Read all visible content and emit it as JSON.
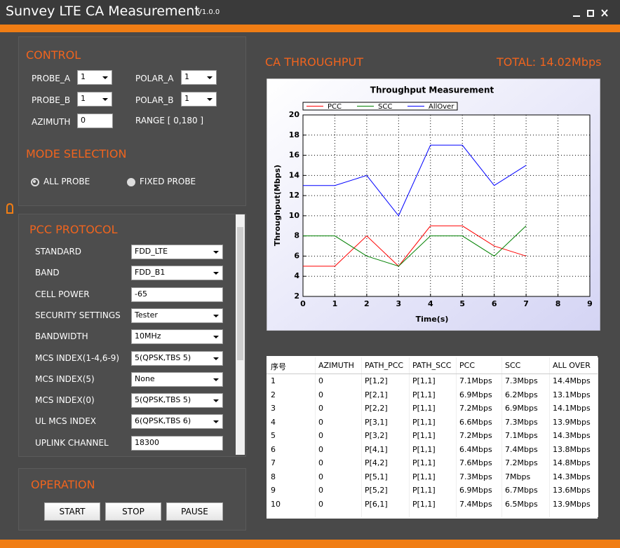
{
  "header": {
    "title": "Sunvey LTE CA Measurement",
    "version": "V1.0.0"
  },
  "control": {
    "title": "CONTROL",
    "fields": [
      {
        "label": "PROBE_A",
        "value": "1"
      },
      {
        "label": "POLAR_A",
        "value": "1"
      },
      {
        "label": "PROBE_B",
        "value": "1"
      },
      {
        "label": "POLAR_B",
        "value": "1"
      },
      {
        "label": "AZIMUTH",
        "value": "0"
      }
    ],
    "range": "RANGE  [ 0,180 ]"
  },
  "mode": {
    "title": "MODE SELECTION",
    "options": [
      "ALL PROBE",
      "FIXED PROBE"
    ]
  },
  "pcc": {
    "title": "PCC PROTOCOL",
    "rows": [
      [
        "STANDARD",
        "FDD_LTE"
      ],
      [
        "BAND",
        "FDD_B1"
      ],
      [
        "CELL POWER",
        "-65"
      ],
      [
        "SECURITY SETTINGS",
        "Tester"
      ],
      [
        "BANDWIDTH",
        "10MHz"
      ],
      [
        "MCS INDEX(1-4,6-9)",
        "5(QPSK,TBS 5)"
      ],
      [
        "MCS INDEX(5)",
        "None"
      ],
      [
        "MCS INDEX(0)",
        "5(QPSK,TBS 5)"
      ],
      [
        "UL MCS INDEX",
        "6(QPSK,TBS 6)"
      ],
      [
        "UPLINK CHANNEL",
        "18300"
      ]
    ]
  },
  "operation": {
    "title": "OPERATION",
    "buttons": [
      "START",
      "STOP",
      "PAUSE"
    ]
  },
  "throughput": {
    "title": "CA THROUGHPUT",
    "total": "TOTAL: 14.02Mbps"
  },
  "chart_data": {
    "type": "line",
    "title": "Throughput Measurement",
    "x_label": "Time(s)",
    "y_label": "Throughput(Mbps)",
    "x": [
      0,
      1,
      2,
      3,
      4,
      5,
      6,
      7
    ],
    "series": [
      {
        "name": "PCC",
        "color": "#ff0000",
        "values": [
          5,
          5,
          8,
          5,
          9,
          9,
          7,
          6
        ]
      },
      {
        "name": "SCC",
        "color": "#008000",
        "values": [
          8,
          8,
          6,
          5,
          8,
          8,
          6,
          9
        ]
      },
      {
        "name": "AllOver",
        "color": "#0000ff",
        "values": [
          13,
          13,
          14,
          10,
          17,
          17,
          13,
          15
        ]
      }
    ],
    "xlim": [
      0,
      9
    ],
    "xticks": [
      0,
      1,
      2,
      3,
      4,
      5,
      6,
      7,
      8,
      9
    ],
    "ylim": [
      2,
      20
    ],
    "yticks": [
      2,
      4,
      6,
      8,
      10,
      12,
      14,
      16,
      18,
      20
    ],
    "grid": true
  },
  "table": {
    "columns": [
      "序号",
      "AZIMUTH",
      "PATH_PCC",
      "PATH_SCC",
      "PCC",
      "SCC",
      "ALL OVER"
    ],
    "rows": [
      [
        "1",
        "0",
        "P[1,2]",
        "P[1,1]",
        "7.1Mbps",
        "7.3Mbps",
        "14.4Mbps"
      ],
      [
        "2",
        "0",
        "P[2,1]",
        "P[1,1]",
        "6.9Mbps",
        "6.2Mbps",
        "13.1Mbps"
      ],
      [
        "3",
        "0",
        "P[2,2]",
        "P[1,1]",
        "7.2Mbps",
        "6.9Mbps",
        "14.1Mbps"
      ],
      [
        "4",
        "0",
        "P[3,1]",
        "P[1,1]",
        "6.6Mbps",
        "7.3Mbps",
        "13.9Mbps"
      ],
      [
        "5",
        "0",
        "P[3,2]",
        "P[1,1]",
        "7.2Mbps",
        "7.1Mbps",
        "14.3Mbps"
      ],
      [
        "6",
        "0",
        "P[4,1]",
        "P[1,1]",
        "6.4Mbps",
        "7.4Mbps",
        "13.8Mbps"
      ],
      [
        "7",
        "0",
        "P[4,2]",
        "P[1,1]",
        "7.6Mbps",
        "7.2Mbps",
        "14.8Mbps"
      ],
      [
        "8",
        "0",
        "P[5,1]",
        "P[1,1]",
        "7.3Mbps",
        "7Mbps",
        "14.3Mbps"
      ],
      [
        "9",
        "0",
        "P[5,2]",
        "P[1,1]",
        "6.9Mbps",
        "6.7Mbps",
        "13.6Mbps"
      ],
      [
        "10",
        "0",
        "P[6,1]",
        "P[1,1]",
        "7.4Mbps",
        "6.5Mbps",
        "13.9Mbps"
      ]
    ]
  }
}
